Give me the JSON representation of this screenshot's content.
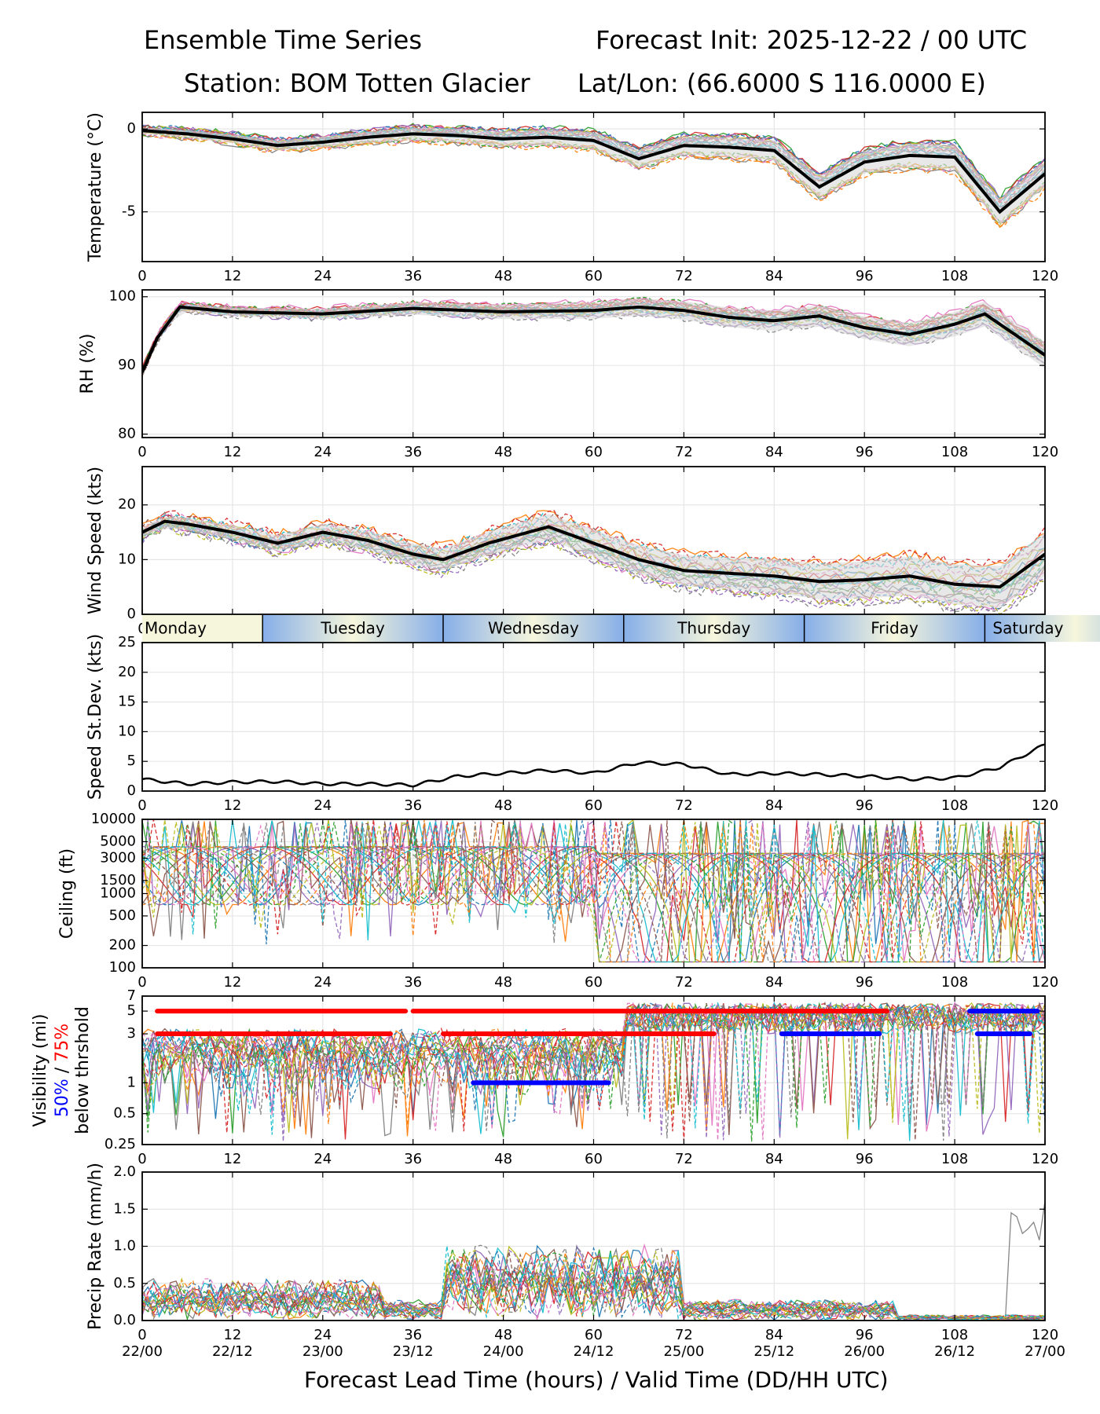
{
  "header": {
    "title_left": "Ensemble Time Series",
    "title_right": "Forecast Init: 2025-12-22 / 00 UTC",
    "station": "Station: BOM Totten Glacier",
    "latlon": "Lat/Lon: (66.6000 S 116.0000 E)"
  },
  "footer": {
    "xlabel": "Forecast Lead Time (hours) / Valid Time (DD/HH UTC)",
    "valid_ticks": [
      "22/00",
      "22/12",
      "23/00",
      "23/12",
      "24/00",
      "24/12",
      "25/00",
      "25/12",
      "26/00",
      "26/12",
      "27/00"
    ]
  },
  "day_bar": {
    "labels": [
      {
        "name": "Monday",
        "start": 0,
        "end": 16
      },
      {
        "name": "Tuesday",
        "start": 16,
        "end": 40
      },
      {
        "name": "Wednesday",
        "start": 40,
        "end": 64
      },
      {
        "name": "Thursday",
        "start": 64,
        "end": 88
      },
      {
        "name": "Friday",
        "start": 88,
        "end": 112
      },
      {
        "name": "Saturday",
        "start": 112,
        "end": 136
      }
    ],
    "colors": {
      "light": "#f6f6dc",
      "blue": "#86aee8"
    }
  },
  "colors": {
    "mean_line": "#000000",
    "spread_fill": "#d9d9d9",
    "grid": "#e6e6e6",
    "vis_50": "#0000ff",
    "vis_75": "#ff0000",
    "members": [
      "#1f77b4",
      "#ff7f0e",
      "#2ca02c",
      "#d62728",
      "#9467bd",
      "#8c564b",
      "#e377c2",
      "#7f7f7f",
      "#bcbd22",
      "#17becf"
    ]
  },
  "chart_data": [
    {
      "id": "temperature",
      "type": "line",
      "ylabel": "Temperature (°C)",
      "xlim": [
        0,
        120
      ],
      "ylim": [
        -8,
        1
      ],
      "xticks": [
        0,
        12,
        24,
        36,
        48,
        60,
        72,
        84,
        96,
        108,
        120
      ],
      "yticks": [
        0,
        -5
      ],
      "series": [
        {
          "name": "ensemble mean",
          "x": [
            0,
            6,
            12,
            18,
            24,
            30,
            36,
            42,
            48,
            54,
            60,
            66,
            72,
            78,
            84,
            90,
            96,
            102,
            108,
            114,
            120
          ],
          "y": [
            -0.1,
            -0.3,
            -0.6,
            -1.0,
            -0.8,
            -0.5,
            -0.3,
            -0.4,
            -0.6,
            -0.5,
            -0.7,
            -1.8,
            -1.0,
            -1.1,
            -1.3,
            -3.5,
            -2.0,
            -1.6,
            -1.7,
            -5.0,
            -2.7
          ]
        }
      ],
      "members": 20,
      "member_spread": 0.5
    },
    {
      "id": "rh",
      "type": "line",
      "ylabel": "RH (%)",
      "xlim": [
        0,
        120
      ],
      "ylim": [
        79.5,
        101
      ],
      "xticks": [
        0,
        12,
        24,
        36,
        48,
        60,
        72,
        84,
        96,
        108,
        120
      ],
      "yticks": [
        80,
        90,
        100
      ],
      "series": [
        {
          "name": "ensemble mean",
          "x": [
            0,
            2,
            5,
            12,
            24,
            36,
            48,
            60,
            66,
            72,
            78,
            84,
            90,
            96,
            102,
            108,
            112,
            120
          ],
          "y": [
            89,
            94,
            98.5,
            97.8,
            97.5,
            98.3,
            97.8,
            98.0,
            98.5,
            98.0,
            97.0,
            96.5,
            97.2,
            95.5,
            94.5,
            96.0,
            97.5,
            91.5
          ]
        }
      ],
      "members": 20,
      "member_spread": 1.2
    },
    {
      "id": "wind_speed",
      "type": "line",
      "ylabel": "Wind Speed (kts)",
      "xlim": [
        0,
        120
      ],
      "ylim": [
        0,
        27
      ],
      "xticks": [
        0,
        12,
        24,
        36,
        48,
        60,
        72,
        84,
        96,
        108,
        120
      ],
      "yticks": [
        0,
        10,
        20
      ],
      "series": [
        {
          "name": "ensemble mean",
          "x": [
            0,
            3,
            6,
            12,
            18,
            24,
            30,
            36,
            40,
            46,
            54,
            60,
            66,
            72,
            78,
            84,
            90,
            96,
            102,
            108,
            114,
            120
          ],
          "y": [
            15,
            17,
            16.5,
            15,
            13,
            15,
            13.5,
            11,
            10,
            13,
            16,
            13,
            10,
            8,
            7.5,
            7,
            6,
            6.3,
            7,
            5.5,
            5,
            11
          ]
        }
      ],
      "members": 20,
      "member_spread": 2.5
    },
    {
      "id": "speed_stdev",
      "type": "line",
      "ylabel": "Speed St.Dev. (kts)",
      "xlim": [
        0,
        120
      ],
      "ylim": [
        0,
        25
      ],
      "xticks": [
        0,
        12,
        24,
        36,
        48,
        60,
        72,
        84,
        96,
        108,
        120
      ],
      "yticks": [
        0,
        5,
        10,
        15,
        20,
        25
      ],
      "series": [
        {
          "name": "speed st.dev.",
          "x": [
            0,
            6,
            12,
            18,
            24,
            30,
            36,
            42,
            48,
            54,
            60,
            66,
            72,
            78,
            84,
            90,
            96,
            102,
            108,
            114,
            120
          ],
          "y": [
            2,
            1.2,
            1.5,
            1.6,
            1.2,
            1.2,
            1.0,
            2.5,
            3.0,
            3.5,
            3.0,
            4.8,
            4.5,
            2.8,
            3.0,
            2.8,
            2.5,
            2.0,
            2.2,
            4.0,
            7.8
          ]
        }
      ]
    },
    {
      "id": "ceiling",
      "type": "line",
      "ylabel": "Ceiling (ft)",
      "yscale": "log",
      "xlim": [
        0,
        120
      ],
      "ylim": [
        100,
        10000
      ],
      "xticks": [
        0,
        12,
        24,
        36,
        48,
        60,
        72,
        84,
        96,
        108,
        120
      ],
      "yticks": [
        100,
        200,
        500,
        1000,
        1500,
        3000,
        5000,
        10000
      ],
      "ytick_labels": [
        "100",
        "200",
        "500",
        "1000",
        "1500",
        "3000",
        "5000",
        "10000"
      ],
      "members": 20
    },
    {
      "id": "visibility",
      "type": "line",
      "ylabel": "Visibility (mi)",
      "yscale": "log",
      "ylabel_line2_blue": "50%",
      "ylabel_line2_sep": " / ",
      "ylabel_line2_red": "75%",
      "ylabel_line3": "below thrshold",
      "xlim": [
        0,
        120
      ],
      "ylim": [
        0.25,
        7
      ],
      "xticks": [
        0,
        12,
        24,
        36,
        48,
        60,
        72,
        84,
        96,
        108,
        120
      ],
      "yticks": [
        0.25,
        0.5,
        1,
        3,
        5,
        7
      ],
      "ytick_labels": [
        "0.25",
        "0.5",
        "1",
        "3",
        "5",
        "7"
      ],
      "members": 20,
      "threshold_bars": [
        {
          "level": 5,
          "start": 2,
          "end": 35,
          "color": "red"
        },
        {
          "level": 5,
          "start": 36,
          "end": 99,
          "color": "red"
        },
        {
          "level": 3,
          "start": 2,
          "end": 33,
          "color": "red"
        },
        {
          "level": 3,
          "start": 40,
          "end": 76,
          "color": "red"
        },
        {
          "level": 3,
          "start": 85,
          "end": 98,
          "color": "blue"
        },
        {
          "level": 1,
          "start": 44,
          "end": 62,
          "color": "blue"
        },
        {
          "level": 5,
          "start": 110,
          "end": 119,
          "color": "blue"
        },
        {
          "level": 3,
          "start": 111,
          "end": 118,
          "color": "blue"
        }
      ]
    },
    {
      "id": "precip_rate",
      "type": "line",
      "ylabel": "Precip Rate (mm/h)",
      "xlim": [
        0,
        120
      ],
      "ylim": [
        0,
        2
      ],
      "xticks": [
        0,
        12,
        24,
        36,
        48,
        60,
        72,
        84,
        96,
        108,
        120
      ],
      "yticks": [
        0,
        0.5,
        1,
        1.5,
        2
      ],
      "ytick_labels": [
        "0.0",
        "0.5",
        "1.0",
        "1.5",
        "2.0"
      ],
      "members": 20
    }
  ]
}
